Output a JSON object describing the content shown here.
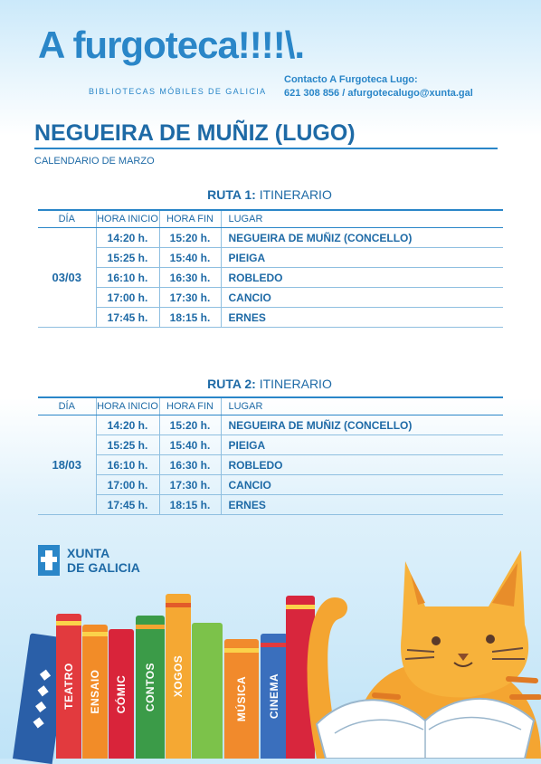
{
  "header": {
    "logo": "A furgoteca!!!!\\.",
    "subtitle": "BIBLIOTECAS MÓBILES DE GALICIA",
    "contact_line1": "Contacto A Furgoteca Lugo:",
    "contact_line2": "621 308 856 / afurgotecalugo@xunta.gal"
  },
  "town": "NEGUEIRA DE MUÑIZ (LUGO)",
  "calendar": "CALENDARIO DE MARZO",
  "columns": {
    "dia": "DÍA",
    "inicio": "HORA INICIO",
    "fin": "HORA FIN",
    "lugar": "LUGAR"
  },
  "routes": [
    {
      "label": "RUTA 1:",
      "suffix": "ITINERARIO",
      "date": "03/03",
      "stops": [
        {
          "start": "14:20 h.",
          "end": "15:20 h.",
          "place": "NEGUEIRA DE MUÑIZ (CONCELLO)"
        },
        {
          "start": "15:25 h.",
          "end": "15:40 h.",
          "place": "PIEIGA"
        },
        {
          "start": "16:10 h.",
          "end": "16:30 h.",
          "place": "ROBLEDO"
        },
        {
          "start": "17:00 h.",
          "end": "17:30 h.",
          "place": "CANCIO"
        },
        {
          "start": "17:45 h.",
          "end": "18:15 h.",
          "place": "ERNES"
        }
      ]
    },
    {
      "label": "RUTA 2:",
      "suffix": "ITINERARIO",
      "date": "18/03",
      "stops": [
        {
          "start": "14:20 h.",
          "end": "15:20 h.",
          "place": "NEGUEIRA DE MUÑIZ (CONCELLO)"
        },
        {
          "start": "15:25 h.",
          "end": "15:40 h.",
          "place": "PIEIGA"
        },
        {
          "start": "16:10 h.",
          "end": "16:30 h.",
          "place": "ROBLEDO"
        },
        {
          "start": "17:00 h.",
          "end": "17:30 h.",
          "place": "CANCIO"
        },
        {
          "start": "17:45 h.",
          "end": "18:15 h.",
          "place": "ERNES"
        }
      ]
    }
  ],
  "xunta": {
    "line1": "XUNTA",
    "line2": "DE GALICIA"
  },
  "books": [
    "TEATRO",
    "ENSAIO",
    "CÓMIC",
    "CONTOS",
    "XOGOS",
    "MÚSICA",
    "CINEMA"
  ],
  "colors": {
    "primary": "#2a86c8",
    "dark": "#1e6aa6",
    "cat": "#f4a531"
  }
}
